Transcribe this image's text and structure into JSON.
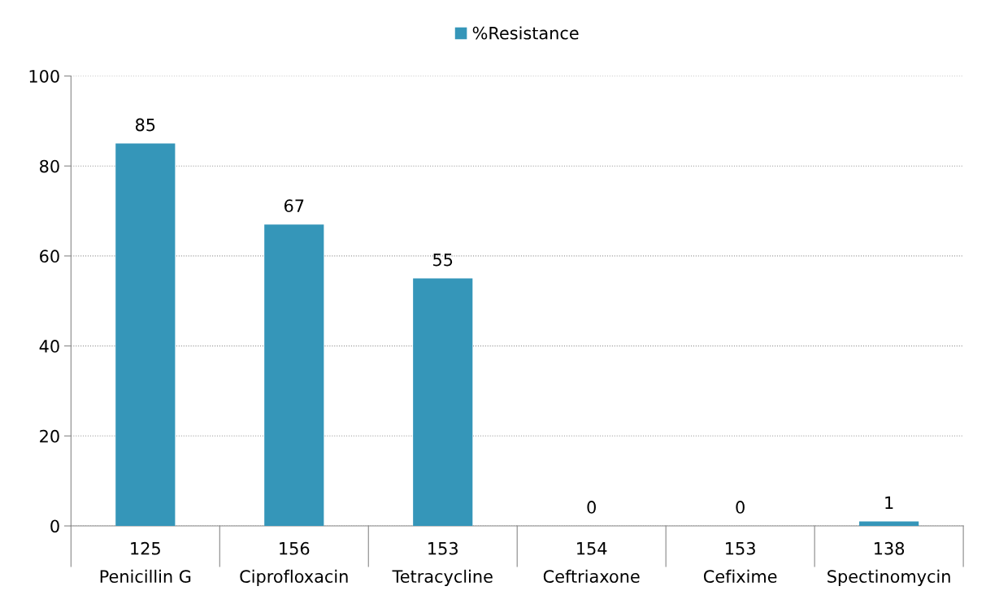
{
  "chart_data": {
    "type": "bar",
    "categories": [
      "125\nPenicillin G",
      "156\nCiprofloxacin",
      "153\nTetracycline",
      "154\nCeftriaxone",
      "153\nCefixime",
      "138\nSpectinomycin"
    ],
    "series": [
      {
        "name": "%Resistance",
        "color": "#3596b9",
        "values": [
          85,
          67,
          55,
          0,
          0,
          1
        ]
      }
    ],
    "ylim": [
      0,
      100
    ],
    "yticks": [
      0,
      20,
      40,
      60,
      80,
      100
    ],
    "grid": "y",
    "legend": "top",
    "data_labels": true
  }
}
